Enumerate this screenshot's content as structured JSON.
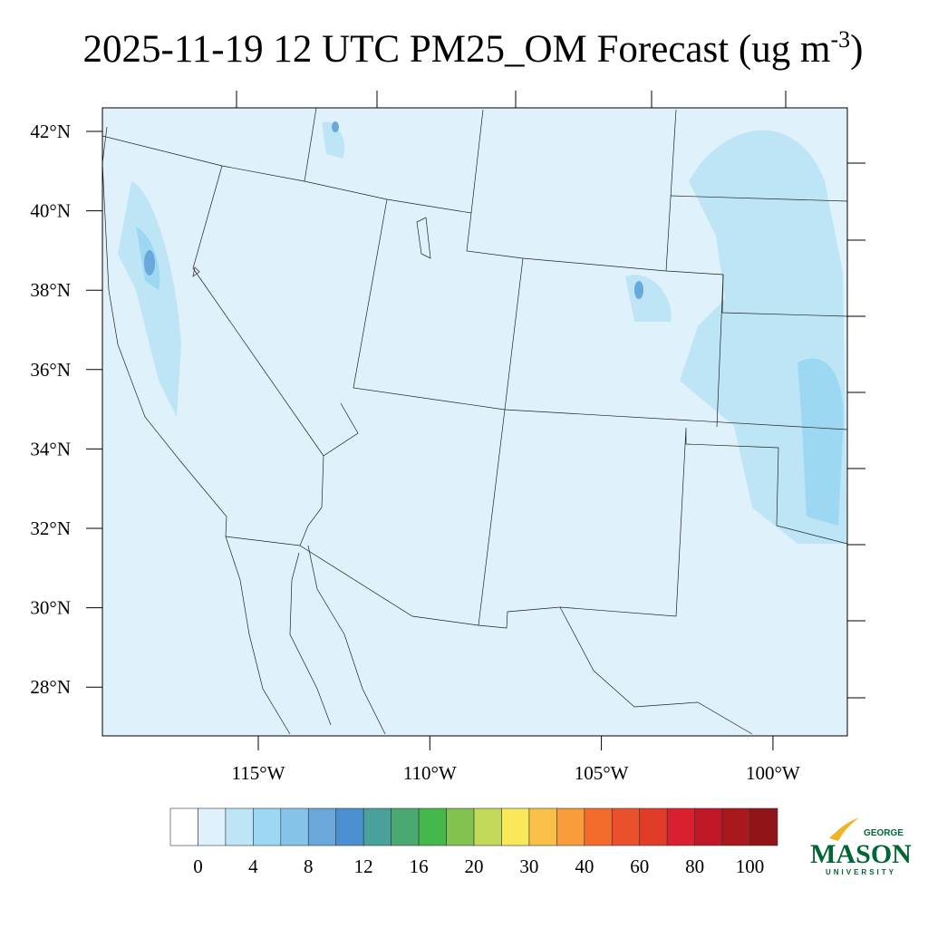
{
  "header": {
    "title": "2025-11-19 12 UTC PM25_OM Forecast (ug m",
    "superscript": "-3",
    "title_end": ")"
  },
  "map": {
    "lat_labels": [
      "42°N",
      "40°N",
      "38°N",
      "36°N",
      "34°N",
      "32°N",
      "30°N",
      "28°N"
    ],
    "lon_labels": [
      "115°W",
      "110°W",
      "105°W",
      "100°W"
    ]
  },
  "colorbar": {
    "colors": [
      "#ffffff",
      "#dff2fb",
      "#bde5f6",
      "#9dd8f3",
      "#86c3e8",
      "#6aa8dc",
      "#4a8fd0",
      "#4aa09a",
      "#4aa870",
      "#44b84a",
      "#82c24e",
      "#c2d858",
      "#f8e85a",
      "#f8c048",
      "#f89c3c",
      "#f46c2c",
      "#ea502c",
      "#e03c28",
      "#d82030",
      "#c01828",
      "#a8181c",
      "#901418"
    ],
    "labels": [
      "0",
      "4",
      "8",
      "12",
      "16",
      "20",
      "30",
      "40",
      "60",
      "80",
      "100"
    ]
  },
  "logo": {
    "top": "GEORGE",
    "name": "MASON",
    "bottom": "UNIVERSITY"
  }
}
